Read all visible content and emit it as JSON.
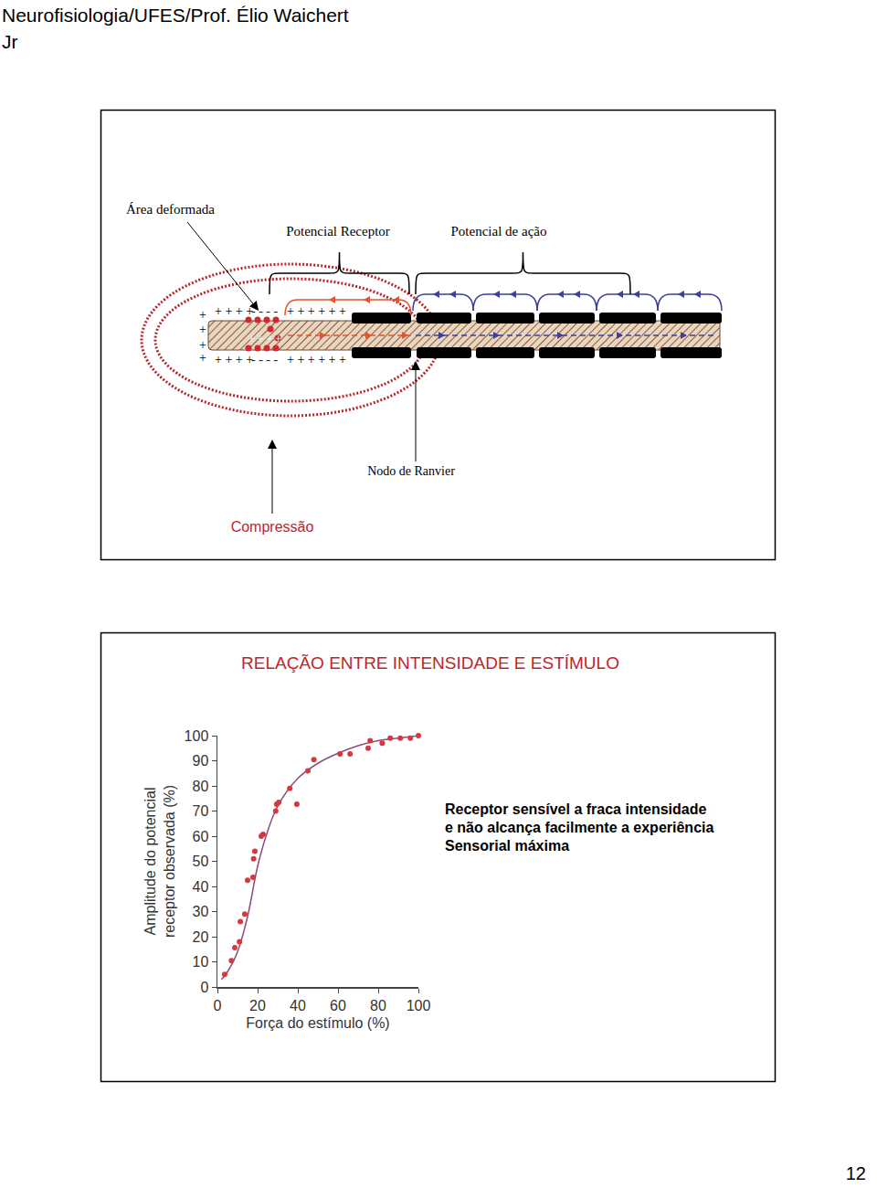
{
  "header": {
    "lines": [
      "Neurofisiologia/UFES/Prof. Élio Waichert",
      "Jr"
    ]
  },
  "diagram": {
    "labels": {
      "area": "Área deformada",
      "receptor": "Potencial Receptor",
      "action": "Potencial de ação",
      "node": "Nodo de Ranvier",
      "stimulus": "Compressão"
    },
    "charges": {
      "outside": "+",
      "top_left": "+ + + +",
      "top_mid": "- - - -",
      "top_right": "+ + + + + +",
      "inside": "+ + + +",
      "bottom_left": "+ + + +",
      "bottom_mid": "- - - -",
      "bottom_right": "+ + + + + +"
    }
  },
  "chart_data": {
    "type": "scatter",
    "title": "RELAÇÃO ENTRE INTENSIDADE E ESTÍMULO",
    "xlabel": "Força do estímulo (%)",
    "ylabel": [
      "Amplitude do potencial",
      "receptor observada (%)"
    ],
    "annotation": [
      "Receptor sensível a fraca intensidade",
      "e não alcança facilmente a experiência",
      "Sensorial máxima"
    ],
    "xlim": [
      0,
      100
    ],
    "ylim": [
      0,
      100
    ],
    "xticks": [
      0,
      20,
      40,
      60,
      80,
      100
    ],
    "yticks": [
      0,
      10,
      20,
      30,
      40,
      50,
      60,
      70,
      80,
      90,
      100
    ],
    "grid": false,
    "series": [
      {
        "type": "scatter",
        "marker": "circle",
        "color": "#d8373d",
        "x": [
          3.6,
          7,
          8.6,
          11,
          11.4,
          13.6,
          15,
          17.7,
          18,
          18.6,
          21.8,
          22.7,
          29,
          29.5,
          30.5,
          36,
          39.5,
          45,
          48,
          61,
          66,
          75,
          76,
          82,
          86,
          91,
          96,
          100
        ],
        "values": [
          5,
          10.5,
          15.6,
          18,
          26,
          29,
          42.5,
          43.6,
          51,
          54,
          60,
          60.7,
          70,
          72.7,
          73.5,
          79,
          72.7,
          86,
          90.5,
          92.7,
          92.7,
          95,
          98,
          97,
          99,
          99,
          99,
          100
        ]
      },
      {
        "type": "line",
        "line_style": "solid",
        "color": "#8a4d7c",
        "x": [
          2,
          5,
          10,
          15,
          20,
          25,
          30,
          40,
          50,
          60,
          70,
          80,
          90,
          100
        ],
        "values": [
          3,
          6,
          14,
          28,
          48,
          62,
          72,
          83,
          89,
          93,
          96,
          98,
          99,
          100
        ]
      }
    ]
  },
  "page_number": "12"
}
